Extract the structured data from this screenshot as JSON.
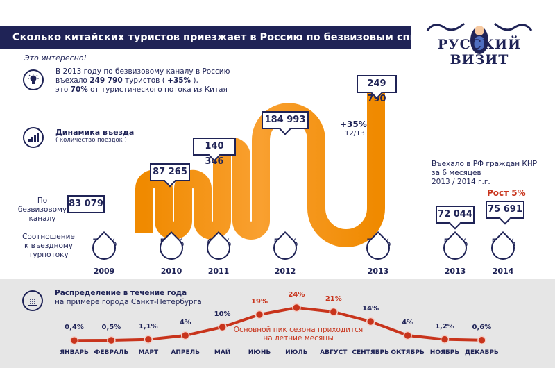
{
  "header": {
    "title": "Сколько китайских туристов приезжает в Россию по безвизовым спискам?",
    "logo_text": "РУССКИЙ ВИЗИТ"
  },
  "intro": {
    "label": "Это интересно!",
    "line1": "В 2013 году по безвизовому каналу в Россию",
    "line2_a": "въехало ",
    "line2_b": "249 790",
    "line2_c": " туристов ( ",
    "line2_d": "+35%",
    "line2_e": " ),",
    "line3_a": "это ",
    "line3_b": "70%",
    "line3_c": " от туристического потока из Китая"
  },
  "dynamics": {
    "title": "Динамика въезда",
    "subtitle": "( количество поездок )"
  },
  "row_labels": {
    "visa_free": "По безвизовому каналу",
    "ratio": "Соотношение к въездному турпотоку"
  },
  "growth": {
    "value": "+35%",
    "period": "12/13"
  },
  "half_year": {
    "caption_1": "Въехало в РФ граждан КНР",
    "caption_2": "за 6 месяцев",
    "caption_3": "2013 / 2014 г.г.",
    "growth_label": "Рост 5%"
  },
  "colors": {
    "navy": "#1f2356",
    "orange": "#f7941d",
    "red": "#c8341c",
    "gray_bg": "#e6e6e6"
  },
  "icons": {
    "idea": "lightbulb-icon",
    "dynamics": "bar-chart-icon",
    "calendar": "calendar-icon"
  },
  "chart_data": [
    {
      "type": "bar",
      "title": "Динамика въезда",
      "categories": [
        "2009",
        "2010",
        "2011",
        "2012",
        "2013"
      ],
      "values": [
        83079,
        87265,
        140346,
        184993,
        249790
      ],
      "labels": [
        "83 079",
        "87 265",
        "140 346",
        "184 993",
        "249 790"
      ],
      "ratios": [
        "72%",
        "55%",
        "60%",
        "54%",
        "70%"
      ]
    },
    {
      "type": "bar",
      "title": "Въехало в РФ граждан КНР за 6 месяцев",
      "categories": [
        "2013",
        "2014"
      ],
      "values": [
        72044,
        75691
      ],
      "labels": [
        "72 044",
        "75 691"
      ],
      "ratios": [
        "56%",
        "56%"
      ]
    },
    {
      "type": "line",
      "title": "Распределение в течение года",
      "subtitle": "на примере города Санкт-Петербурга",
      "categories": [
        "ЯНВАРЬ",
        "ФЕВРАЛЬ",
        "МАРТ",
        "АПРЕЛЬ",
        "МАЙ",
        "ИЮНЬ",
        "ИЮЛЬ",
        "АВГУСТ",
        "СЕНТЯБРЬ",
        "ОКТЯБРЬ",
        "НОЯБРЬ",
        "ДЕКАБРЬ"
      ],
      "values": [
        0.4,
        0.5,
        1.1,
        4,
        10,
        19,
        24,
        21,
        14,
        4,
        1.2,
        0.6
      ],
      "labels": [
        "0,4%",
        "0,5%",
        "1,1%",
        "4%",
        "10%",
        "19%",
        "24%",
        "21%",
        "14%",
        "4%",
        "1,2%",
        "0,6%"
      ],
      "annotation_1": "Основной пик сезона приходится",
      "annotation_2": "на летние месяцы"
    }
  ]
}
